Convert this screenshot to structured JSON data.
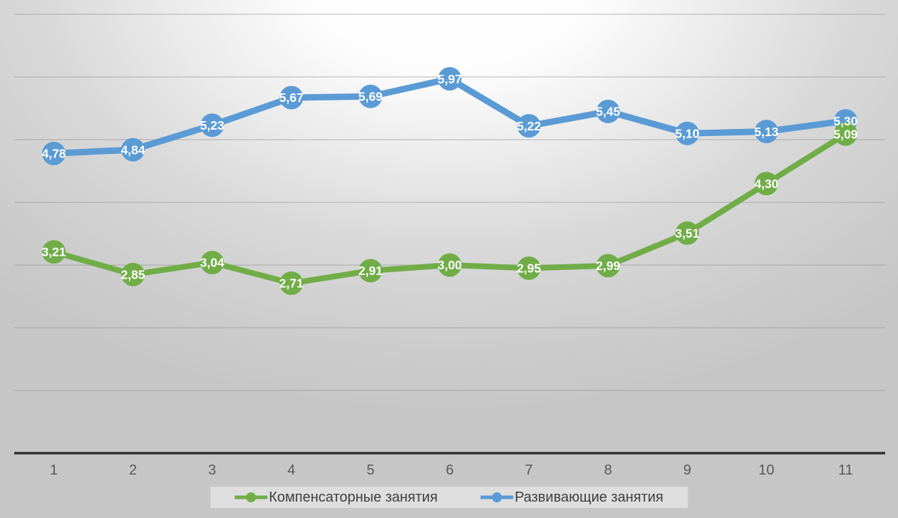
{
  "chart_data": {
    "type": "line",
    "x": [
      1,
      2,
      3,
      4,
      5,
      6,
      7,
      8,
      9,
      10,
      11
    ],
    "x_tick_labels": [
      "1",
      "2",
      "3",
      "4",
      "5",
      "6",
      "7",
      "8",
      "9",
      "10",
      "11"
    ],
    "series": [
      {
        "name": "Компенсаторные занятия",
        "color": "#70AD47",
        "values": [
          3.21,
          2.85,
          3.04,
          2.71,
          2.91,
          3.0,
          2.95,
          2.99,
          3.51,
          4.3,
          5.09
        ],
        "point_labels": [
          "3,21",
          "2,85",
          "3,04",
          "2,71",
          "2,91",
          "3,00",
          "2,95",
          "2,99",
          "3,51",
          "4,30",
          "5,09"
        ]
      },
      {
        "name": "Развивающие занятия",
        "color": "#5B9BD5",
        "values": [
          4.78,
          4.84,
          5.23,
          5.67,
          5.69,
          5.97,
          5.22,
          5.45,
          5.1,
          5.13,
          5.3
        ],
        "point_labels": [
          "4,78",
          "4,84",
          "5,23",
          "5,67",
          "5,69",
          "5,97",
          "5,22",
          "5,45",
          "5,10",
          "5,13",
          "5,30"
        ]
      }
    ],
    "title": "",
    "xlabel": "",
    "ylabel": "",
    "ylim": [
      0,
      7
    ],
    "gridline_interval": 1,
    "grid": true,
    "y_axis_labels_visible": false,
    "legend_position": "bottom",
    "data_label_color": "#ffffff",
    "axis_line_color": "#303030",
    "gridline_color": "#8f8f8f",
    "x_tick_color": "#595959",
    "legend_text_color": "#3f3f3f"
  }
}
